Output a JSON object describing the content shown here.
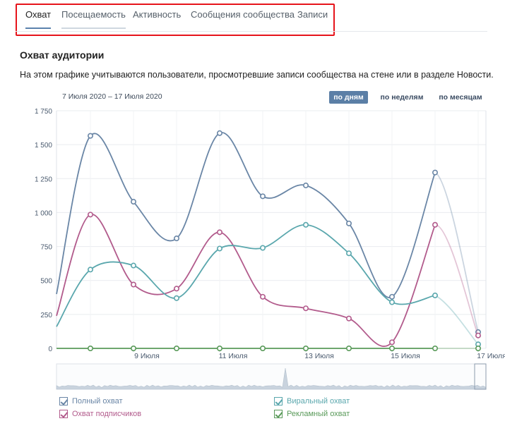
{
  "tabs": [
    {
      "label": "Охват",
      "active": true
    },
    {
      "label": "Посещаемость",
      "active": false
    },
    {
      "label": "Активность",
      "active": false
    },
    {
      "label": "Сообщения сообщества",
      "active": false
    },
    {
      "label": "Записи",
      "active": false
    }
  ],
  "section": {
    "title": "Охват аудитории",
    "description": "На этом графике учитываются пользователи, просмотревшие записи сообщества на стене или в разделе Новости."
  },
  "date_range": "7 Июля 2020 – 17 Июля 2020",
  "period": {
    "by_day": "по дням",
    "by_week": "по неделям",
    "by_month": "по месяцам",
    "selected": "by_day"
  },
  "colors": {
    "full": "#6a86a6",
    "subscribers": "#b25b8c",
    "viral": "#5aa7ad",
    "ads": "#5a9a5a"
  },
  "legend": {
    "full": "Полный охват",
    "subscribers": "Охват подписчиков",
    "viral": "Виральный охват",
    "ads": "Рекламный охват"
  },
  "chart_data": {
    "type": "line",
    "ylim": [
      0,
      1750
    ],
    "y_ticks": [
      "1 750",
      "1 500",
      "1 250",
      "1 000",
      "750",
      "500",
      "250",
      "0"
    ],
    "y_tick_values": [
      1750,
      1500,
      1250,
      1000,
      750,
      500,
      250,
      0
    ],
    "x_tick_labels": [
      {
        "label": "9 Июля",
        "day": 9
      },
      {
        "label": "11 Июля",
        "day": 11
      },
      {
        "label": "13 Июля",
        "day": 13
      },
      {
        "label": "15 Июля",
        "day": 15
      },
      {
        "label": "17 Июля",
        "day": 17
      }
    ],
    "x_days": [
      7,
      8,
      9,
      10,
      11,
      12,
      13,
      14,
      15,
      16,
      17,
      18
    ],
    "series": [
      {
        "key": "full",
        "values": [
          390,
          1565,
          1080,
          810,
          1585,
          1120,
          1200,
          920,
          380,
          1295,
          120
        ],
        "start": 400
      },
      {
        "key": "subscribers",
        "values": [
          230,
          985,
          470,
          440,
          855,
          380,
          295,
          220,
          45,
          910,
          95
        ],
        "start": 240
      },
      {
        "key": "viral",
        "values": [
          160,
          580,
          610,
          370,
          735,
          740,
          910,
          700,
          340,
          390,
          30
        ],
        "start": 160
      },
      {
        "key": "ads",
        "values": [
          0,
          0,
          0,
          0,
          0,
          0,
          0,
          0,
          0,
          0,
          0
        ],
        "start": 0
      }
    ]
  }
}
